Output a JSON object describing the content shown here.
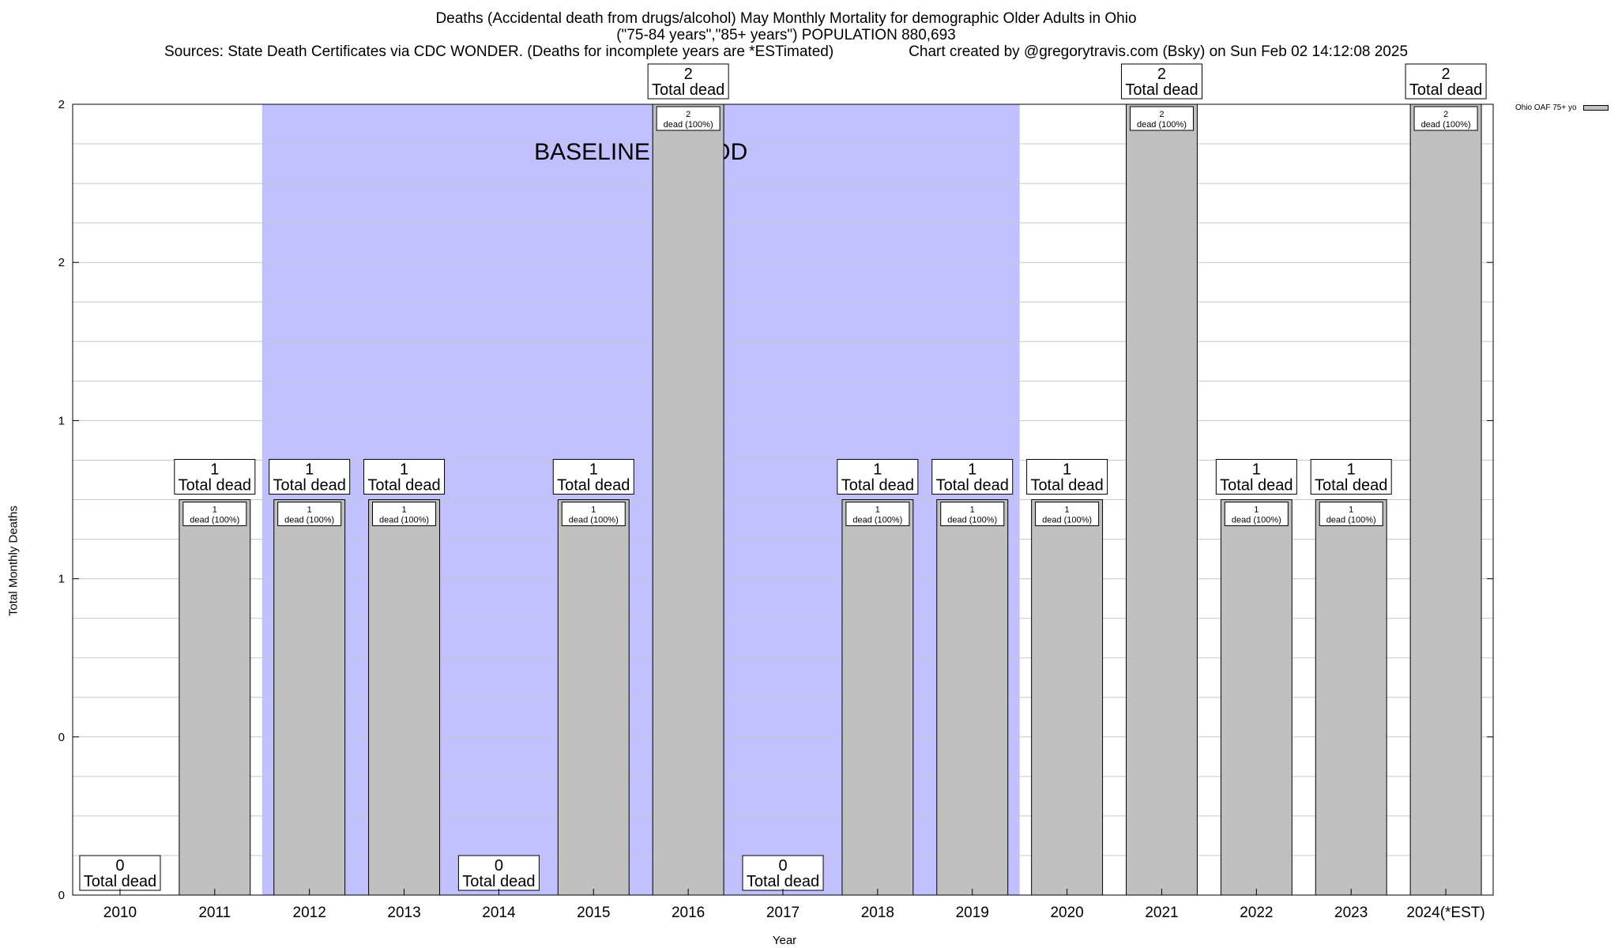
{
  "chart_data": {
    "type": "bar",
    "title": "Deaths (Accidental death from drugs/alcohol) May Monthly Mortality for demographic Older Adults in Ohio",
    "subtitle": "(\"75-84 years\",\"85+ years\") POPULATION 880,693",
    "source": "Sources: State Death Certificates via CDC WONDER. (Deaths for incomplete years are *ESTimated)",
    "credit": "Chart created by @gregorytravis.com (Bsky) on Sun Feb 02 14:12:08 2025",
    "xlabel": "Year",
    "ylabel": "Total Monthly Deaths",
    "ylim": [
      0,
      2
    ],
    "y_tick_labels": [
      "0",
      "0",
      "1",
      "1",
      "2",
      "2"
    ],
    "categories": [
      "2010",
      "2011",
      "2012",
      "2013",
      "2014",
      "2015",
      "2016",
      "2017",
      "2018",
      "2019",
      "2020",
      "2021",
      "2022",
      "2023",
      "2024(*EST)"
    ],
    "series": [
      {
        "name": "Ohio OAF 75+ yo",
        "color": "#c0c0c0",
        "values": [
          0,
          1,
          1,
          1,
          0,
          1,
          2,
          0,
          1,
          1,
          1,
          2,
          1,
          1,
          2
        ]
      }
    ],
    "top_label_suffix": "Total dead",
    "inner_label_suffix": "dead (100%)",
    "baseline": {
      "label": "BASELINE PERIOD",
      "start": "2012",
      "end": "2019",
      "color": "#c0c0ff"
    },
    "grid": true,
    "legend_position": "top-right"
  }
}
